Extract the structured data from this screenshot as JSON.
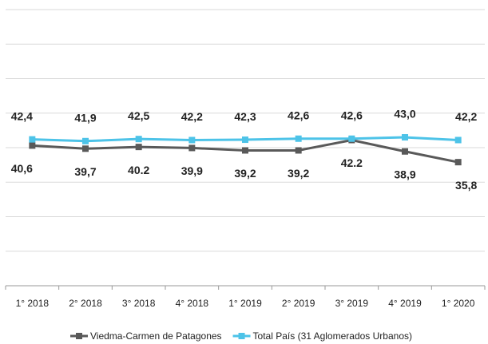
{
  "chart_data": {
    "type": "line",
    "categories": [
      "1° 2018",
      "2° 2018",
      "3° 2018",
      "4° 2018",
      "1° 2019",
      "2° 2019",
      "3° 2019",
      "4° 2019",
      "1° 2020"
    ],
    "series": [
      {
        "name": "Viedma-Carmen de Patagones",
        "color": "#595959",
        "values": [
          40.6,
          39.7,
          40.2,
          39.9,
          39.2,
          39.2,
          42.2,
          38.9,
          35.8
        ],
        "value_labels": [
          "40,6",
          "39,7",
          "40.2",
          "39,9",
          "39,2",
          "39,2",
          "42.2",
          "38,9",
          "35,8"
        ]
      },
      {
        "name": "Total País (31 Aglomerados Urbanos)",
        "color": "#4dc3e8",
        "values": [
          42.4,
          41.9,
          42.5,
          42.2,
          42.3,
          42.6,
          42.6,
          43.0,
          42.2
        ],
        "value_labels": [
          "42,4",
          "41,9",
          "42,5",
          "42,2",
          "42,3",
          "42,6",
          "42,6",
          "43,0",
          "42,2"
        ]
      }
    ],
    "ylim": [
      0,
      80
    ],
    "yticks": [
      0,
      10,
      20,
      30,
      40,
      50,
      60,
      70,
      80
    ],
    "grid": true
  }
}
